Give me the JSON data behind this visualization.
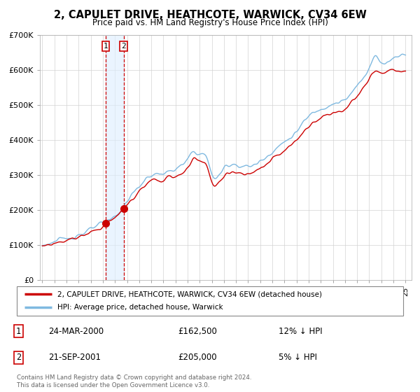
{
  "title": "2, CAPULET DRIVE, HEATHCOTE, WARWICK, CV34 6EW",
  "subtitle": "Price paid vs. HM Land Registry's House Price Index (HPI)",
  "legend_line1": "2, CAPULET DRIVE, HEATHCOTE, WARWICK, CV34 6EW (detached house)",
  "legend_line2": "HPI: Average price, detached house, Warwick",
  "sale1_date": "24-MAR-2000",
  "sale1_price": "£162,500",
  "sale1_hpi": "12% ↓ HPI",
  "sale2_date": "21-SEP-2001",
  "sale2_price": "£205,000",
  "sale2_hpi": "5% ↓ HPI",
  "footer": "Contains HM Land Registry data © Crown copyright and database right 2024.\nThis data is licensed under the Open Government Licence v3.0.",
  "hpi_color": "#7fb9e0",
  "price_color": "#cc0000",
  "dot_color": "#cc0000",
  "shade_color": "#ddeeff",
  "ylim": [
    0,
    700000
  ],
  "yticks": [
    0,
    100000,
    200000,
    300000,
    400000,
    500000,
    600000,
    700000
  ],
  "ytick_labels": [
    "£0",
    "£100K",
    "£200K",
    "£300K",
    "£400K",
    "£500K",
    "£600K",
    "£700K"
  ],
  "sale1_x": 2000.23,
  "sale1_y": 162500,
  "sale2_x": 2001.72,
  "sale2_y": 205000,
  "xmin": 1994.8,
  "xmax": 2025.5
}
